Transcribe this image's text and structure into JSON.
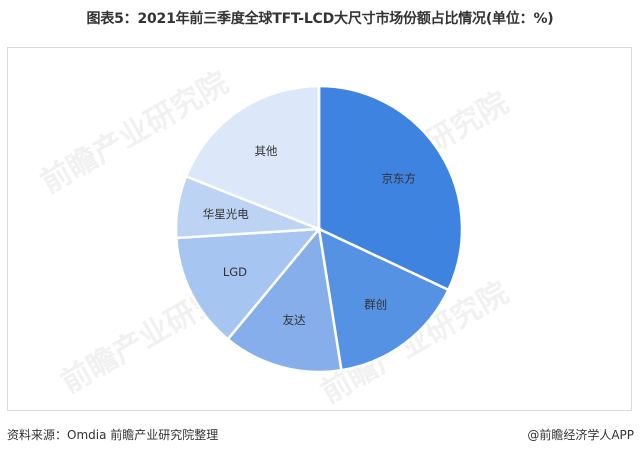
{
  "title": "图表5：2021年前三季度全球TFT-LCD大尺寸市场份额占比情况(单位：%)",
  "footer": {
    "source": "资料来源：Omdia 前瞻产业研究院整理",
    "credit": "@前瞻经济学人APP"
  },
  "watermark": "前瞻产业研究院",
  "chart_data": {
    "type": "pie",
    "title": "2021年前三季度全球TFT-LCD大尺寸市场份额占比情况(单位：%)",
    "categories": [
      "京东方",
      "群创",
      "友达",
      "LGD",
      "华星光电",
      "其他"
    ],
    "values": [
      32,
      15.5,
      13.5,
      13,
      7,
      19
    ],
    "colors": [
      "#3f83e0",
      "#5592e4",
      "#85aeeb",
      "#a6c5f1",
      "#bcd3f4",
      "#dce8fa"
    ],
    "start_angle_deg": 0,
    "direction": "clockwise",
    "labels_inside": true,
    "legend": "none",
    "unit": "%"
  }
}
